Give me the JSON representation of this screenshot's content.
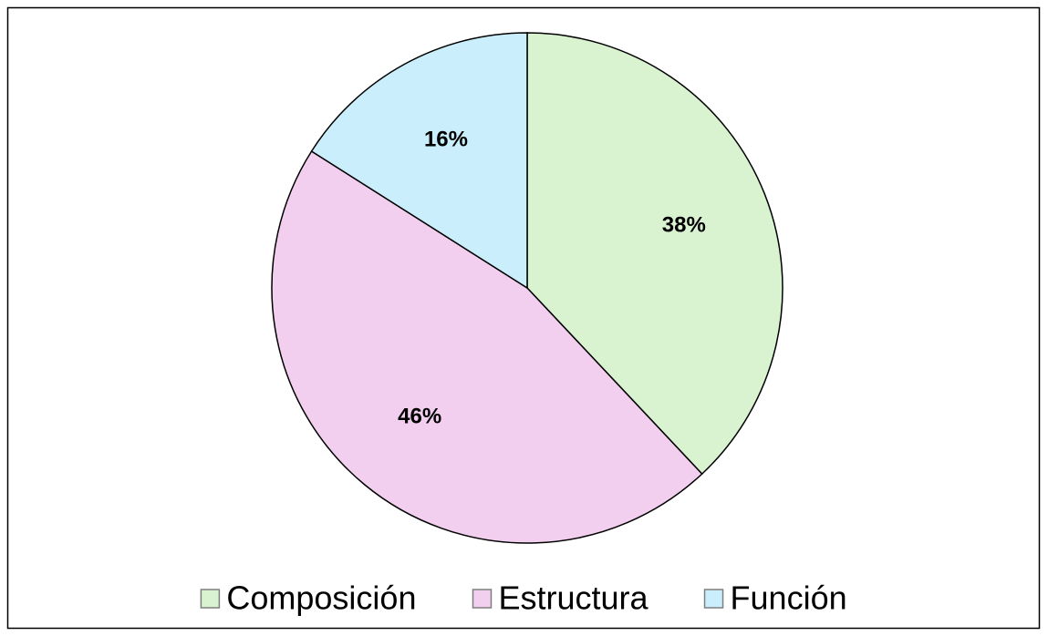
{
  "chart_data": {
    "type": "pie",
    "categories": [
      "Composición",
      "Estructura",
      "Función"
    ],
    "values": [
      38,
      46,
      16
    ],
    "value_labels": [
      "38%",
      "46%",
      "16%"
    ],
    "colors": [
      "#d9f2d0",
      "#f2cfee",
      "#caeefb"
    ],
    "legend": "bottom"
  }
}
